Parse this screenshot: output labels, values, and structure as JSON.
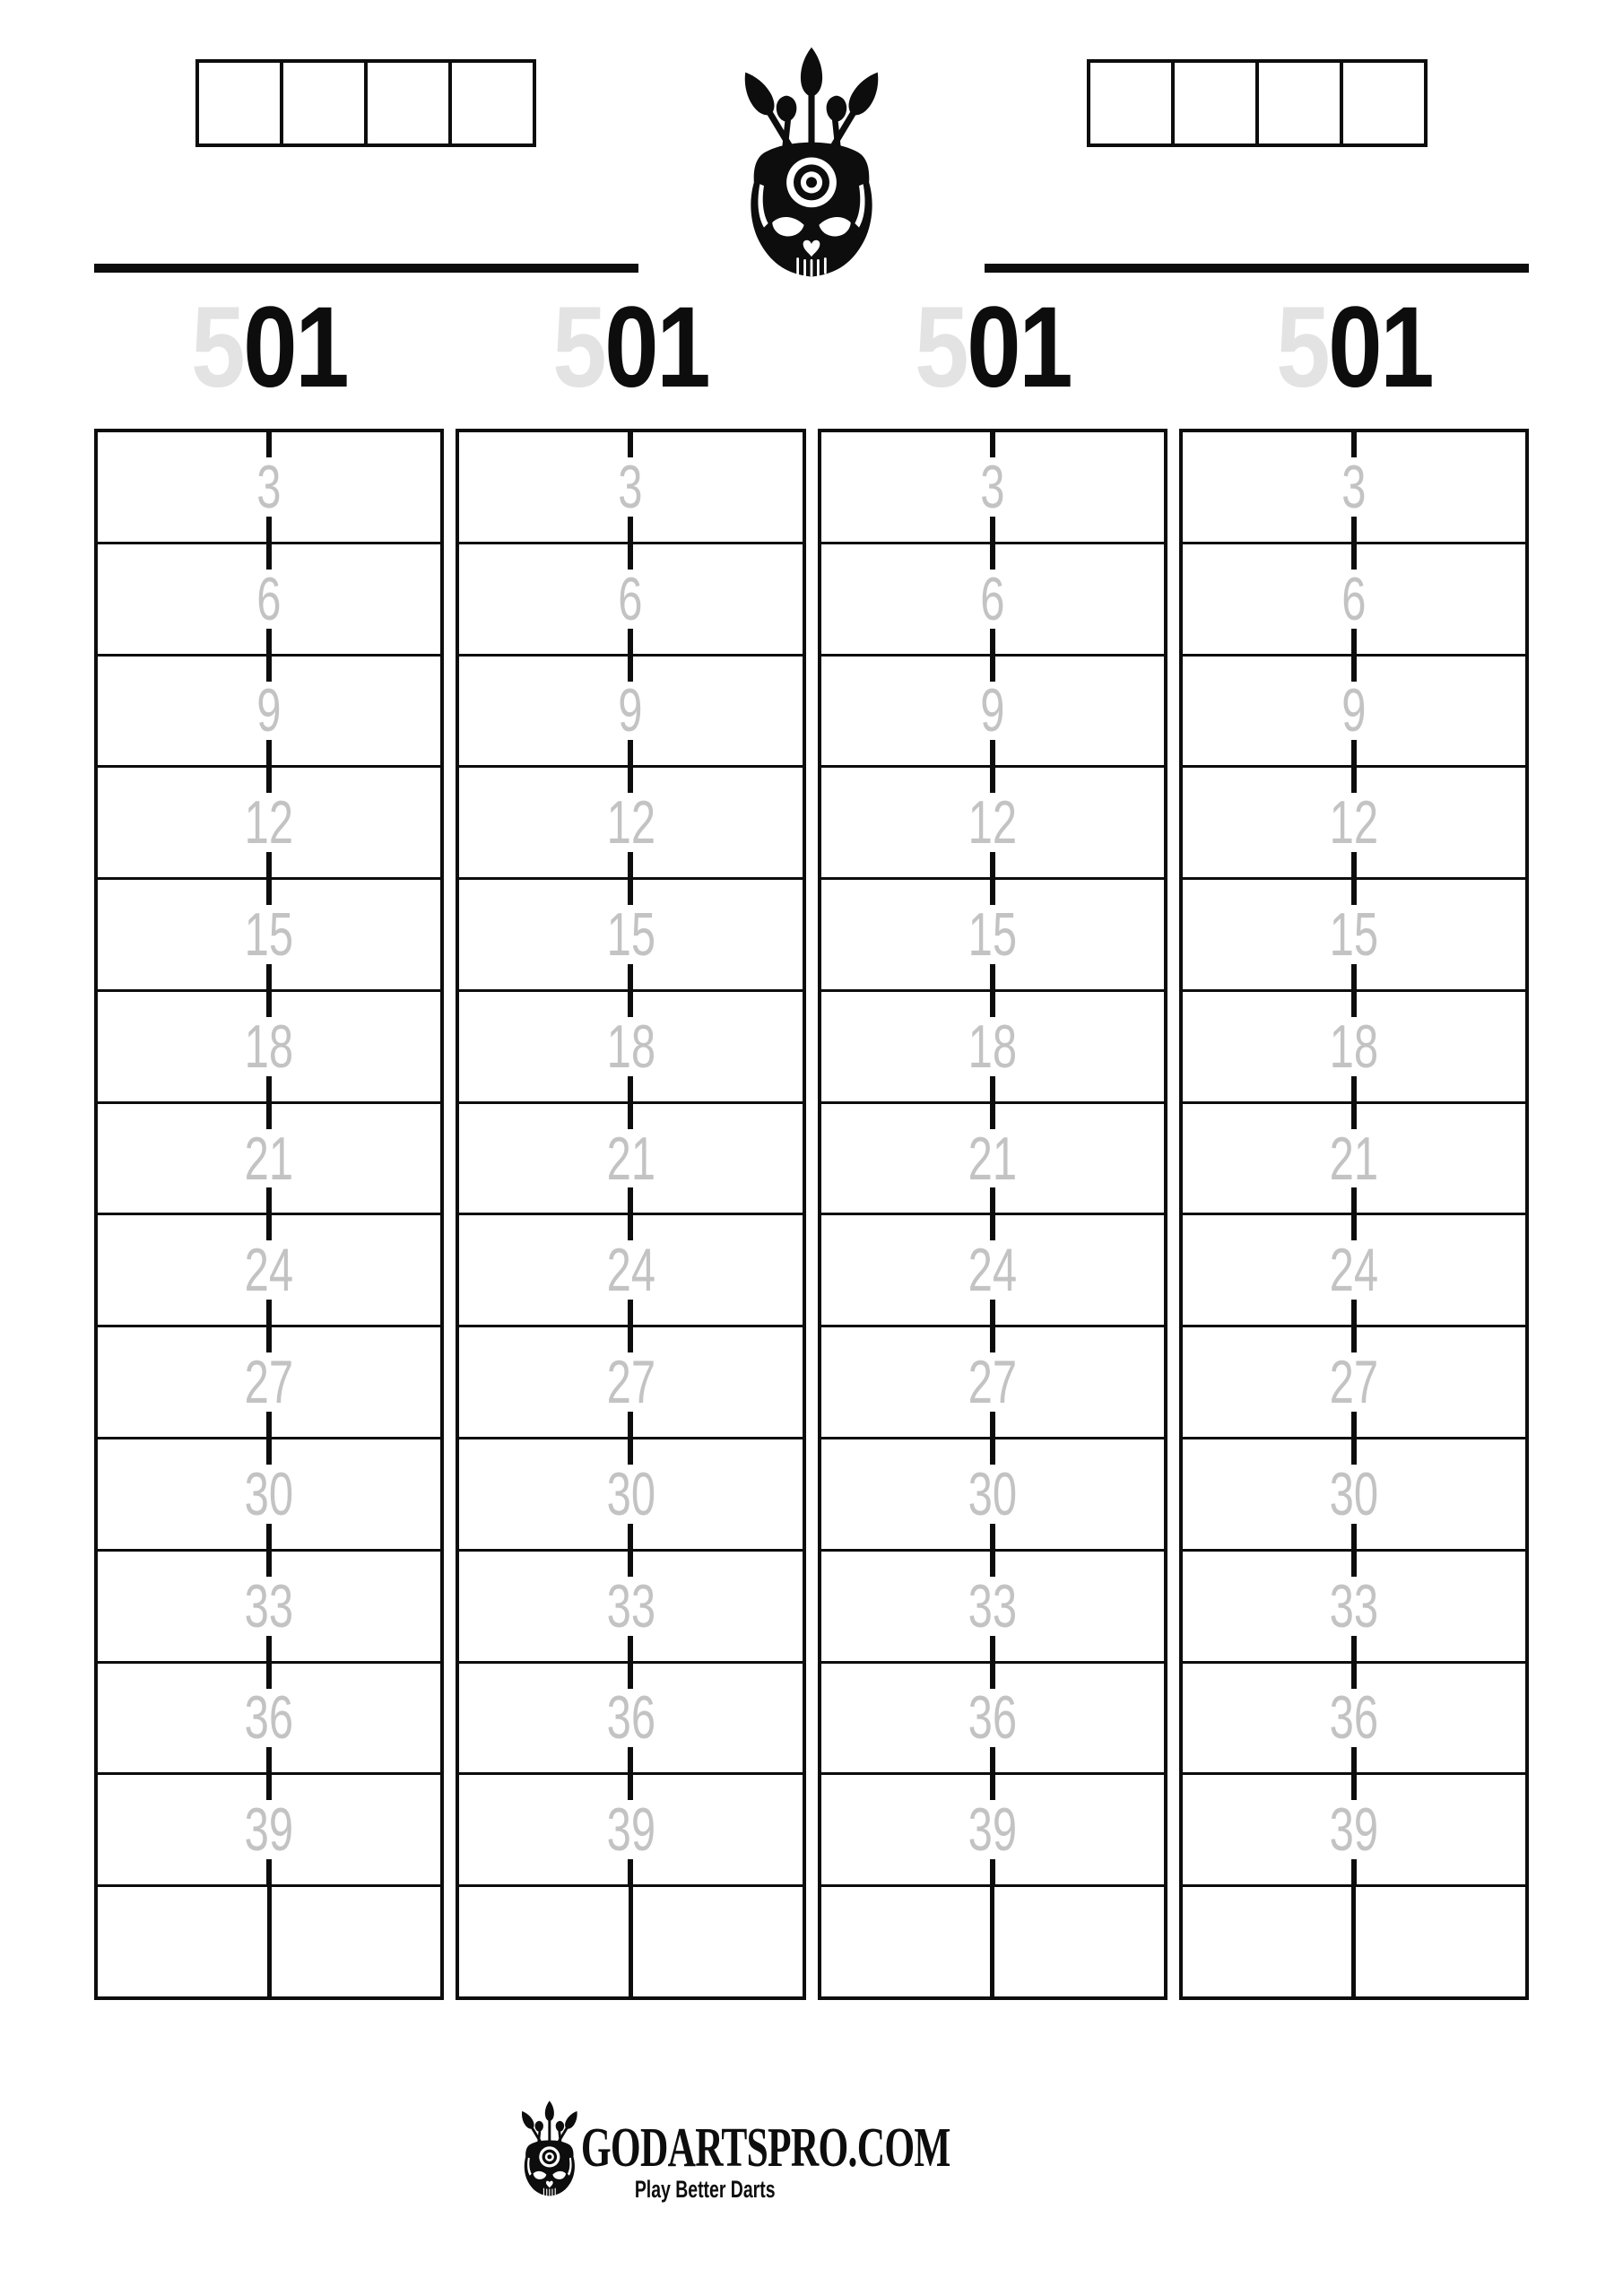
{
  "colors": {
    "ink": "#0d0d0d",
    "row_number_gray": "#c3c3c3",
    "title_accent_gray": "#e3e3e3",
    "background": "#ffffff"
  },
  "top_bar": {
    "left_score_boxes": [
      "",
      "",
      "",
      ""
    ],
    "right_score_boxes": [
      "",
      "",
      "",
      ""
    ],
    "center_logo_icon": "skull-crown-darts-logo"
  },
  "scorecards": [
    {
      "title": {
        "gray_digit": "5",
        "black_digits": "01"
      },
      "row_labels": [
        "3",
        "6",
        "9",
        "12",
        "15",
        "18",
        "21",
        "24",
        "27",
        "30",
        "33",
        "36",
        "39"
      ],
      "final_row_cells": [
        "",
        ""
      ]
    },
    {
      "title": {
        "gray_digit": "5",
        "black_digits": "01"
      },
      "row_labels": [
        "3",
        "6",
        "9",
        "12",
        "15",
        "18",
        "21",
        "24",
        "27",
        "30",
        "33",
        "36",
        "39"
      ],
      "final_row_cells": [
        "",
        ""
      ]
    },
    {
      "title": {
        "gray_digit": "5",
        "black_digits": "01"
      },
      "row_labels": [
        "3",
        "6",
        "9",
        "12",
        "15",
        "18",
        "21",
        "24",
        "27",
        "30",
        "33",
        "36",
        "39"
      ],
      "final_row_cells": [
        "",
        ""
      ]
    },
    {
      "title": {
        "gray_digit": "5",
        "black_digits": "01"
      },
      "row_labels": [
        "3",
        "6",
        "9",
        "12",
        "15",
        "18",
        "21",
        "24",
        "27",
        "30",
        "33",
        "36",
        "39"
      ],
      "final_row_cells": [
        "",
        ""
      ]
    }
  ],
  "footer": {
    "logo_icon": "skull-crown-darts-icon",
    "brand": "GODARTSPRO.COM",
    "tagline": "Play Better Darts"
  }
}
